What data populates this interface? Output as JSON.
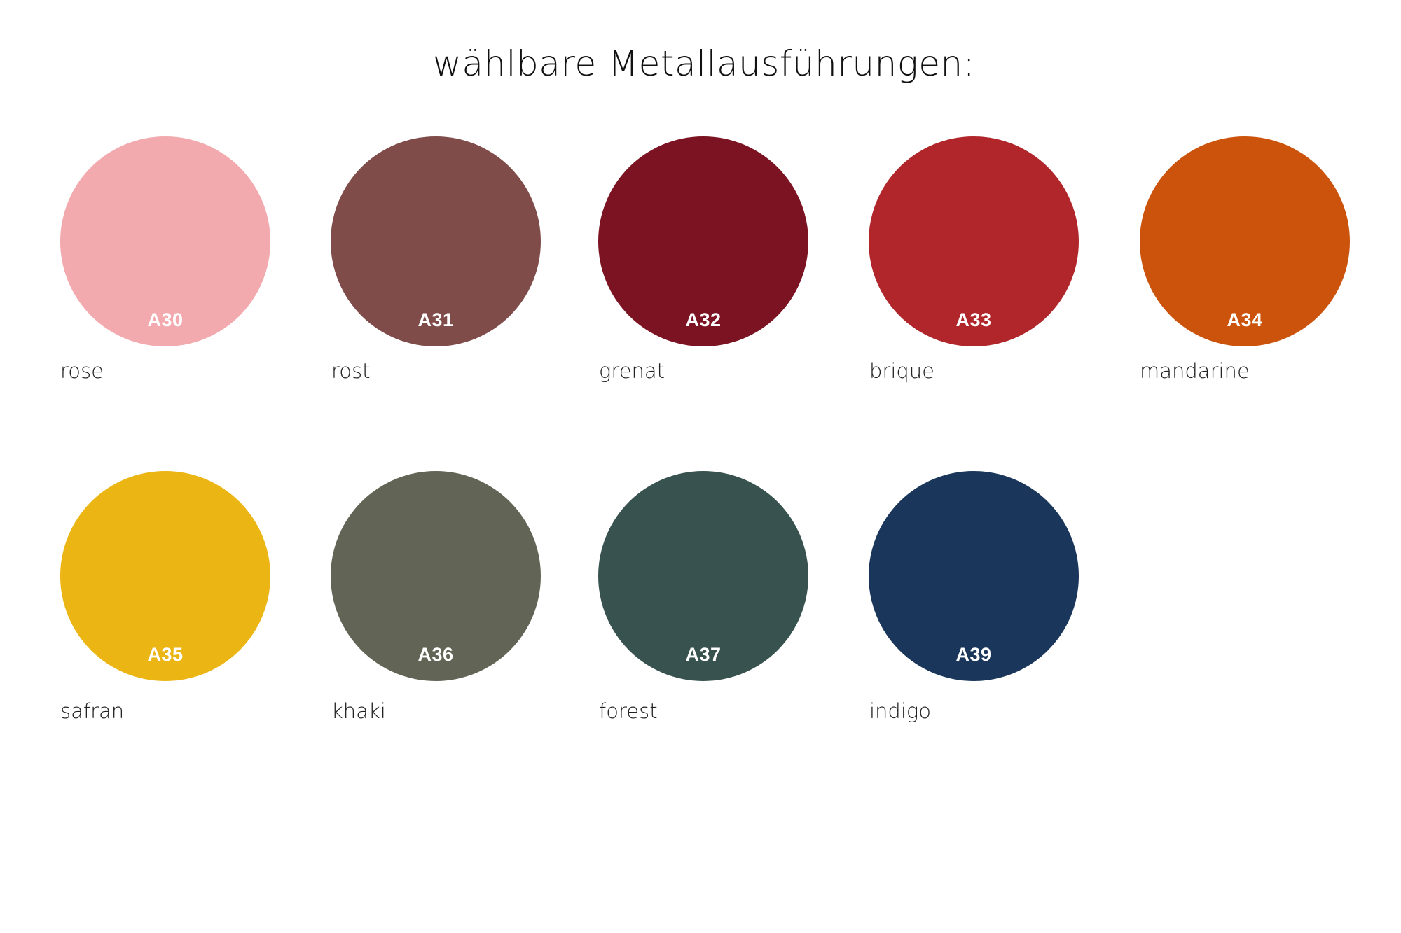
{
  "title": "wählbare Metallausführungen:",
  "swatches": [
    {
      "code": "A30",
      "name": "rose",
      "color": "#f2aaae"
    },
    {
      "code": "A31",
      "name": "rost",
      "color": "#7f4c4a"
    },
    {
      "code": "A32",
      "name": "grenat",
      "color": "#7b1322"
    },
    {
      "code": "A33",
      "name": "brique",
      "color": "#b0262b"
    },
    {
      "code": "A34",
      "name": "mandarine",
      "color": "#cb530c"
    },
    {
      "code": "A35",
      "name": "safran",
      "color": "#ebb514"
    },
    {
      "code": "A36",
      "name": "khaki",
      "color": "#626556"
    },
    {
      "code": "A37",
      "name": "forest",
      "color": "#38534f"
    },
    {
      "code": "A39",
      "name": "indigo",
      "color": "#1a365a"
    }
  ]
}
